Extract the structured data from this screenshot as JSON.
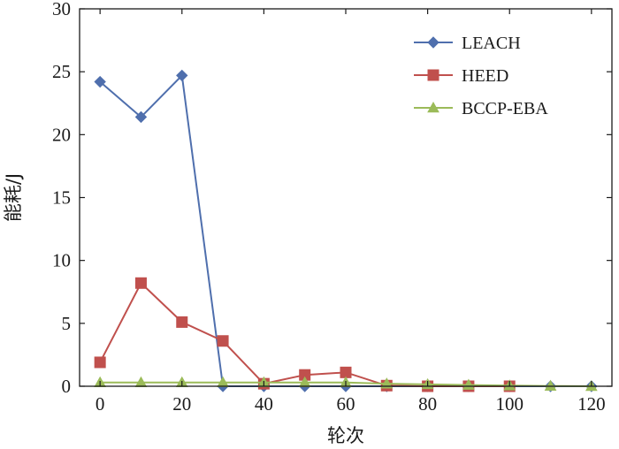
{
  "chart_data": {
    "type": "line",
    "title": "",
    "xlabel": "轮次",
    "ylabel": "能耗/J",
    "xlim": [
      -5,
      125
    ],
    "ylim": [
      0,
      30
    ],
    "xticks": [
      0,
      20,
      40,
      60,
      80,
      100,
      120
    ],
    "yticks": [
      0,
      5,
      10,
      15,
      20,
      25,
      30
    ],
    "grid": false,
    "legend_position": "top-right",
    "series": [
      {
        "name": "LEACH",
        "color": "#4f6fad",
        "marker": "diamond",
        "x": [
          0,
          10,
          20,
          30,
          40,
          50,
          60,
          70,
          80,
          90,
          100,
          110,
          120
        ],
        "y": [
          24.2,
          21.4,
          24.7,
          0,
          0,
          0,
          0,
          0,
          0,
          0,
          0,
          0,
          0
        ]
      },
      {
        "name": "HEED",
        "color": "#c0504d",
        "marker": "square",
        "x": [
          0,
          10,
          20,
          30,
          40,
          50,
          60,
          70,
          80,
          90,
          100
        ],
        "y": [
          1.9,
          8.2,
          5.1,
          3.6,
          0.2,
          0.9,
          1.1,
          0.05,
          0,
          0,
          0
        ]
      },
      {
        "name": "BCCP-EBA",
        "color": "#9bbb59",
        "marker": "triangle",
        "x": [
          0,
          10,
          20,
          30,
          40,
          50,
          60,
          70,
          80,
          90,
          100,
          110,
          120
        ],
        "y": [
          0.3,
          0.3,
          0.3,
          0.3,
          0.3,
          0.3,
          0.3,
          0.2,
          0.15,
          0.1,
          0.05,
          0.02,
          0.0
        ]
      }
    ]
  }
}
